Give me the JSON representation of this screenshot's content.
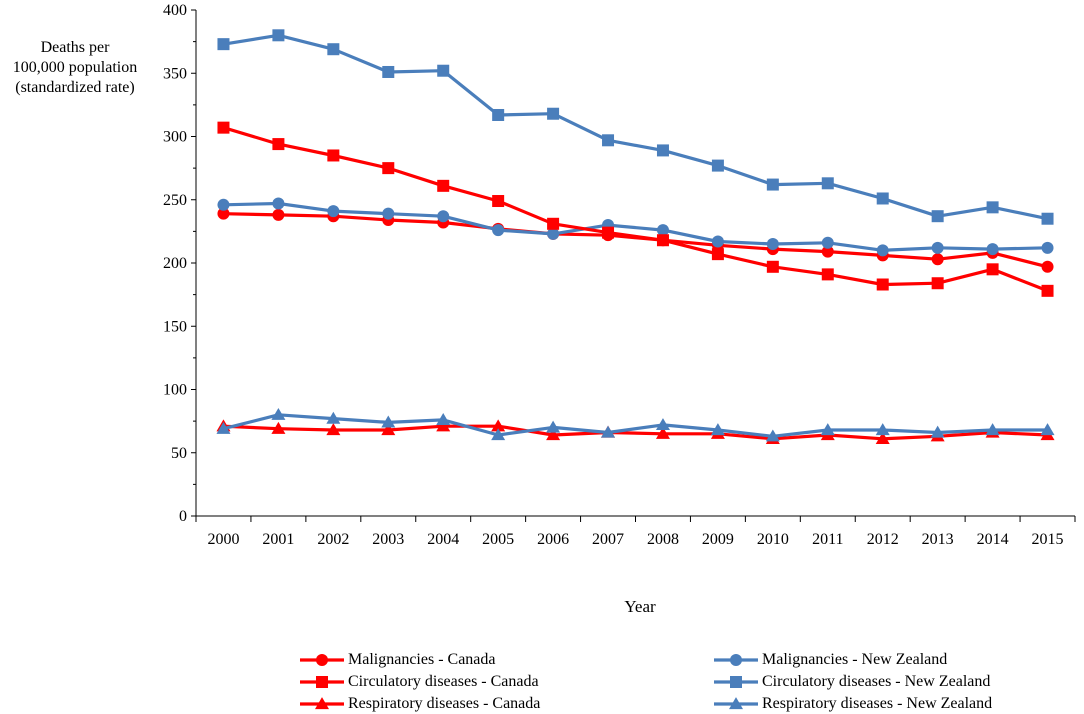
{
  "chart_data": {
    "type": "line",
    "title": "",
    "xlabel": "Year",
    "ylabel_lines": [
      "Deaths per",
      "100,000 population",
      "(standardized rate)"
    ],
    "categories": [
      "2000",
      "2001",
      "2002",
      "2003",
      "2004",
      "2005",
      "2006",
      "2007",
      "2008",
      "2009",
      "2010",
      "2011",
      "2012",
      "2013",
      "2014",
      "2015"
    ],
    "ylim": [
      0,
      400
    ],
    "yticks": [
      0,
      50,
      100,
      150,
      200,
      250,
      300,
      350,
      400
    ],
    "grid": false,
    "legend_position": "bottom",
    "series": [
      {
        "name": "Malignancies - Canada",
        "color": "#ff0000",
        "marker": "circle",
        "values": [
          239,
          238,
          237,
          234,
          232,
          227,
          223,
          222,
          218,
          214,
          211,
          209,
          206,
          203,
          208,
          197
        ]
      },
      {
        "name": "Malignancies - New Zealand",
        "color": "#4a7ebb",
        "marker": "circle",
        "values": [
          246,
          247,
          241,
          239,
          237,
          226,
          223,
          230,
          226,
          217,
          215,
          216,
          210,
          212,
          211,
          212
        ]
      },
      {
        "name": "Circulatory diseases - Canada",
        "color": "#ff0000",
        "marker": "square",
        "values": [
          307,
          294,
          285,
          275,
          261,
          249,
          231,
          224,
          218,
          207,
          197,
          191,
          183,
          184,
          195,
          178
        ]
      },
      {
        "name": "Circulatory diseases - New Zealand",
        "color": "#4a7ebb",
        "marker": "square",
        "values": [
          373,
          380,
          369,
          351,
          352,
          317,
          318,
          297,
          289,
          277,
          262,
          263,
          251,
          237,
          244,
          235
        ]
      },
      {
        "name": "Respiratory diseases - Canada",
        "color": "#ff0000",
        "marker": "triangle",
        "values": [
          71,
          69,
          68,
          68,
          71,
          71,
          64,
          66,
          65,
          65,
          61,
          64,
          61,
          63,
          66,
          64
        ]
      },
      {
        "name": "Respiratory diseases - New Zealand",
        "color": "#4a7ebb",
        "marker": "triangle",
        "values": [
          69,
          80,
          77,
          74,
          76,
          64,
          70,
          66,
          72,
          68,
          63,
          68,
          68,
          66,
          68,
          68
        ]
      }
    ]
  }
}
